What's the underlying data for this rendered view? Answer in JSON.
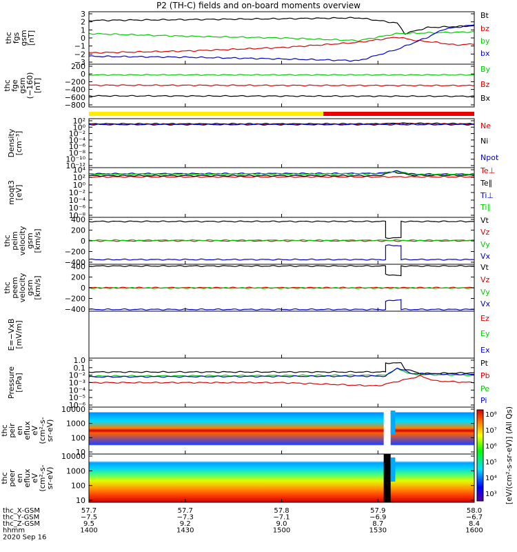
{
  "title": "P2 (TH‑C) fields and on-board moments overview",
  "colors": {
    "black": "#000000",
    "red": "#dd0000",
    "green": "#00cc00",
    "blue": "#0000cc",
    "yellow": "#ffee00",
    "barred": "#ee0000"
  },
  "chart_data": {
    "type": "line",
    "x_ticks": [
      "1400",
      "1430",
      "1500",
      "1530",
      "1600"
    ],
    "time_axis": {
      "label": "hhmm",
      "date": "2020 Sep 16",
      "rows": [
        {
          "label": "thc_X‑GSM",
          "values": [
            "57.7",
            "57.7",
            "57.8",
            "57.9",
            "58.0"
          ]
        },
        {
          "label": "thc_Y‑GSM",
          "values": [
            "−7.5",
            "−7.3",
            "−7.1",
            "−6.9",
            "−6.7"
          ]
        },
        {
          "label": "thc_Z‑GSM",
          "values": [
            "9.5",
            "9.2",
            "9.0",
            "8.7",
            "8.4"
          ]
        }
      ]
    },
    "mode_bar": {
      "segments": [
        {
          "color": "yellow",
          "start": "1400",
          "end": "1513"
        },
        {
          "color": "red",
          "start": "1513",
          "end": "1600"
        }
      ]
    },
    "panels": [
      {
        "id": "fgs",
        "ylabel": [
          "thc",
          "fgs",
          "gsm",
          "[nT]"
        ],
        "yticks": [
          "3",
          "2",
          "1",
          "0",
          "−1",
          "−2",
          "−3"
        ],
        "ylim": [
          -3,
          3
        ],
        "series": [
          {
            "name": "Bt",
            "color": "black",
            "points": [
              [
                0,
                2.0
              ],
              [
                25,
                2.1
              ],
              [
                50,
                2.2
              ],
              [
                70,
                2.3
              ],
              [
                80,
                1.7
              ],
              [
                82,
                0.5
              ],
              [
                88,
                1.2
              ],
              [
                95,
                1.3
              ],
              [
                100,
                1.4
              ]
            ]
          },
          {
            "name": "bz",
            "color": "red",
            "points": [
              [
                0,
                -1.7
              ],
              [
                25,
                -1.5
              ],
              [
                50,
                -1.1
              ],
              [
                70,
                -0.5
              ],
              [
                80,
                0.1
              ],
              [
                85,
                -0.3
              ],
              [
                90,
                -0.5
              ],
              [
                95,
                -0.8
              ],
              [
                100,
                -0.7
              ]
            ]
          },
          {
            "name": "by",
            "color": "green",
            "points": [
              [
                0,
                0.5
              ],
              [
                25,
                0.2
              ],
              [
                50,
                0.0
              ],
              [
                70,
                -0.3
              ],
              [
                80,
                0.5
              ],
              [
                90,
                0.6
              ],
              [
                100,
                0.7
              ]
            ]
          },
          {
            "name": "bx",
            "color": "blue",
            "points": [
              [
                0,
                -2.1
              ],
              [
                25,
                -2.2
              ],
              [
                50,
                -2.4
              ],
              [
                70,
                -2.6
              ],
              [
                80,
                -1.3
              ],
              [
                88,
                0.1
              ],
              [
                92,
                1.0
              ],
              [
                100,
                1.5
              ]
            ]
          }
        ]
      },
      {
        "id": "fge",
        "ylabel": [
          "thc",
          "fge",
          "gsm",
          "(−160)",
          "[nT]"
        ],
        "yticks": [
          "200",
          "0",
          "−200",
          "−400",
          "−600",
          "−800"
        ],
        "ylim": [
          -900,
          300
        ],
        "series": [
          {
            "name": "By",
            "color": "green",
            "points": [
              [
                0,
                0
              ],
              [
                100,
                0
              ]
            ]
          },
          {
            "name": "Bz",
            "color": "red",
            "points": [
              [
                0,
                -290
              ],
              [
                100,
                -300
              ]
            ]
          },
          {
            "name": "Bx",
            "color": "black",
            "points": [
              [
                0,
                -590
              ],
              [
                100,
                -600
              ]
            ]
          }
        ]
      },
      {
        "id": "density",
        "ylabel": [
          "Density",
          "[cm⁻³]"
        ],
        "yticks": [
          "10²",
          "10⁰",
          "10⁻²",
          "10⁻⁴",
          "10⁻⁶",
          "10⁻⁸",
          "10⁻¹⁰",
          "10⁻¹²"
        ],
        "log": true,
        "ylim": [
          -13,
          2
        ],
        "series": [
          {
            "name": "Ne",
            "color": "red",
            "points": [
              [
                0,
                0.3
              ],
              [
                75,
                0.3
              ],
              [
                80,
                0.5
              ],
              [
                100,
                0.3
              ]
            ]
          },
          {
            "name": "Ni",
            "color": "black",
            "points": [
              [
                0,
                0.4
              ],
              [
                75,
                0.4
              ],
              [
                80,
                0.6
              ],
              [
                100,
                0.4
              ]
            ]
          },
          {
            "name": "Npot",
            "color": "blue",
            "points": [
              [
                0,
                0.2
              ],
              [
                100,
                0.2
              ]
            ]
          }
        ]
      },
      {
        "id": "temp",
        "ylabel": [
          "moqt3",
          "[eV]"
        ],
        "yticks": [
          "10⁴",
          "10²",
          "10⁰",
          "10⁻²",
          "10⁻⁴",
          "10⁻⁶",
          "10⁻⁸"
        ],
        "log": true,
        "ylim": [
          -9,
          4
        ],
        "series": [
          {
            "name": "Te⊥",
            "color": "red",
            "points": [
              [
                0,
                1.6
              ],
              [
                100,
                1.6
              ]
            ]
          },
          {
            "name": "Te∥",
            "color": "black",
            "points": [
              [
                0,
                1.9
              ],
              [
                75,
                1.9
              ],
              [
                79,
                2.9
              ],
              [
                84,
                2.0
              ],
              [
                100,
                2.0
              ]
            ]
          },
          {
            "name": "Ti⊥",
            "color": "blue",
            "points": [
              [
                0,
                2.4
              ],
              [
                75,
                2.5
              ],
              [
                80,
                3.1
              ],
              [
                84,
                2.3
              ],
              [
                100,
                2.3
              ]
            ]
          },
          {
            "name": "Ti∥",
            "color": "green",
            "points": [
              [
                0,
                2.3
              ],
              [
                75,
                2.4
              ],
              [
                80,
                3.0
              ],
              [
                84,
                2.2
              ],
              [
                100,
                2.2
              ]
            ]
          }
        ]
      },
      {
        "id": "peim",
        "ylabel": [
          "thc",
          "peim",
          "velocity",
          "gsm",
          "[km/s]"
        ],
        "yticks": [
          "400",
          "200",
          "0",
          "−200",
          "−400"
        ],
        "ylim": [
          -400,
          400
        ],
        "series": [
          {
            "name": "Vt",
            "color": "black",
            "points": [
              [
                0,
                330
              ],
              [
                77,
                330
              ],
              [
                77,
                50
              ],
              [
                81,
                50
              ],
              [
                81,
                330
              ],
              [
                100,
                330
              ]
            ]
          },
          {
            "name": "Vz",
            "color": "red",
            "points": [
              [
                0,
                0
              ],
              [
                100,
                0
              ]
            ]
          },
          {
            "name": "Vy",
            "color": "green",
            "points": [
              [
                0,
                10
              ],
              [
                100,
                10
              ]
            ]
          },
          {
            "name": "Vx",
            "color": "blue",
            "points": [
              [
                0,
                -320
              ],
              [
                77,
                -320
              ],
              [
                77,
                -80
              ],
              [
                81,
                -80
              ],
              [
                81,
                -320
              ],
              [
                100,
                -320
              ]
            ]
          }
        ]
      },
      {
        "id": "peem",
        "ylabel": [
          "thc",
          "peem",
          "velocity",
          "gsm",
          "[km/s]"
        ],
        "yticks": [
          "400",
          "200",
          "0",
          "−200",
          "−400"
        ],
        "ylim": [
          -400,
          400
        ],
        "series": [
          {
            "name": "Vt",
            "color": "black",
            "points": [
              [
                0,
                370
              ],
              [
                77,
                370
              ],
              [
                77,
                230
              ],
              [
                81,
                200
              ],
              [
                81,
                370
              ],
              [
                100,
                370
              ]
            ]
          },
          {
            "name": "Vz",
            "color": "red",
            "points": [
              [
                0,
                0
              ],
              [
                100,
                0
              ]
            ]
          },
          {
            "name": "Vy",
            "color": "green",
            "points": [
              [
                0,
                -5
              ],
              [
                100,
                -5
              ]
            ]
          },
          {
            "name": "Vx",
            "color": "blue",
            "points": [
              [
                0,
                -370
              ],
              [
                77,
                -370
              ],
              [
                77,
                -230
              ],
              [
                81,
                -200
              ],
              [
                81,
                -370
              ],
              [
                100,
                -370
              ]
            ]
          }
        ]
      },
      {
        "id": "efield",
        "ylabel": [
          "E=−VxB",
          "[mV/m]"
        ],
        "yticks": [],
        "ylim": [
          -1,
          1
        ],
        "series": [
          {
            "name": "Ez",
            "color": "red",
            "points": []
          },
          {
            "name": "Ey",
            "color": "green",
            "points": []
          },
          {
            "name": "Ex",
            "color": "blue",
            "points": []
          }
        ]
      },
      {
        "id": "pressure",
        "ylabel": [
          "Pressure",
          "[nPa]"
        ],
        "yticks": [
          "1.0",
          "0.1",
          "10⁻²",
          "10⁻³",
          "10⁻⁴",
          "10⁻⁵",
          "10⁻⁶"
        ],
        "log": true,
        "ylim": [
          -6,
          0
        ],
        "series": [
          {
            "name": "Pt",
            "color": "black",
            "points": [
              [
                0,
                -1.7
              ],
              [
                77,
                -1.7
              ],
              [
                77,
                -0.6
              ],
              [
                81,
                -0.6
              ],
              [
                82,
                -1.3
              ],
              [
                86,
                -1.9
              ],
              [
                100,
                -1.8
              ]
            ]
          },
          {
            "name": "Pb",
            "color": "red",
            "points": [
              [
                0,
                -3.0
              ],
              [
                50,
                -3.0
              ],
              [
                68,
                -3.3
              ],
              [
                75,
                -3.4
              ],
              [
                86,
                -2.2
              ],
              [
                90,
                -2.8
              ],
              [
                100,
                -3.0
              ]
            ]
          },
          {
            "name": "Pe",
            "color": "green",
            "points": [
              [
                0,
                -2.2
              ],
              [
                77,
                -2.1
              ],
              [
                80,
                -1.3
              ],
              [
                84,
                -2.0
              ],
              [
                100,
                -2.1
              ]
            ]
          },
          {
            "name": "Pi",
            "color": "blue",
            "points": [
              [
                0,
                -2.3
              ],
              [
                77,
                -2.2
              ],
              [
                80,
                -1.2
              ],
              [
                84,
                -1.9
              ],
              [
                100,
                -2.0
              ]
            ]
          }
        ]
      },
      {
        "id": "peir",
        "type": "heatmap",
        "ylabel": [
          "thc",
          "peir",
          "en",
          "eflux",
          "eV",
          "(cm²‑s‑",
          "sr‑eV)"
        ],
        "yticks": [
          "10000",
          "1000",
          "100",
          "10"
        ],
        "log": true,
        "ylim": [
          0.7,
          4.3
        ]
      },
      {
        "id": "peer",
        "type": "heatmap",
        "ylabel": [
          "thc",
          "peer",
          "en",
          "eflux",
          "eV",
          "(cm²‑s‑",
          "sr‑eV)"
        ],
        "yticks": [
          "10000",
          "1000",
          "100",
          "10"
        ],
        "log": true,
        "ylim": [
          0.7,
          4.3
        ]
      }
    ],
    "colorbar": {
      "label": "[eV/(cm²‑s‑sr‑eV)] (All Qs)",
      "ticks": [
        "10⁸",
        "10⁷",
        "10⁶",
        "10⁵",
        "10⁴",
        "10³"
      ]
    }
  }
}
